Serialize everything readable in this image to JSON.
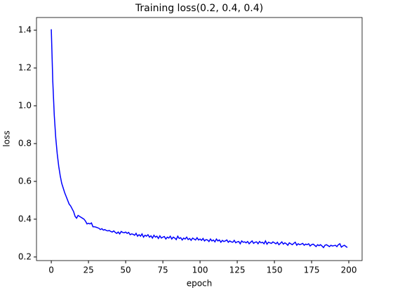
{
  "chart_data": {
    "type": "line",
    "title": "Training loss(0.2, 0.4, 0.4)",
    "xlabel": "epoch",
    "ylabel": "loss",
    "color": "#0000ff",
    "x": [
      0,
      1,
      2,
      3,
      4,
      5,
      6,
      7,
      8,
      9,
      10,
      11,
      12,
      13,
      14,
      15,
      16,
      17,
      18,
      19,
      20,
      21,
      22,
      23,
      24,
      25,
      26,
      27,
      28,
      29,
      30,
      31,
      32,
      33,
      34,
      35,
      36,
      37,
      38,
      39,
      40,
      41,
      42,
      43,
      44,
      45,
      46,
      47,
      48,
      49,
      50,
      51,
      52,
      53,
      54,
      55,
      56,
      57,
      58,
      59,
      60,
      61,
      62,
      63,
      64,
      65,
      66,
      67,
      68,
      69,
      70,
      71,
      72,
      73,
      74,
      75,
      76,
      77,
      78,
      79,
      80,
      81,
      82,
      83,
      84,
      85,
      86,
      87,
      88,
      89,
      90,
      91,
      92,
      93,
      94,
      95,
      96,
      97,
      98,
      99,
      100,
      101,
      102,
      103,
      104,
      105,
      106,
      107,
      108,
      109,
      110,
      111,
      112,
      113,
      114,
      115,
      116,
      117,
      118,
      119,
      120,
      121,
      122,
      123,
      124,
      125,
      126,
      127,
      128,
      129,
      130,
      131,
      132,
      133,
      134,
      135,
      136,
      137,
      138,
      139,
      140,
      141,
      142,
      143,
      144,
      145,
      146,
      147,
      148,
      149,
      150,
      151,
      152,
      153,
      154,
      155,
      156,
      157,
      158,
      159,
      160,
      161,
      162,
      163,
      164,
      165,
      166,
      167,
      168,
      169,
      170,
      171,
      172,
      173,
      174,
      175,
      176,
      177,
      178,
      179,
      180,
      181,
      182,
      183,
      184,
      185,
      186,
      187,
      188,
      189,
      190,
      191,
      192,
      193,
      194,
      195,
      196,
      197,
      198,
      199
    ],
    "values": [
      1.405,
      1.13,
      0.95,
      0.83,
      0.745,
      0.68,
      0.63,
      0.59,
      0.565,
      0.54,
      0.52,
      0.5,
      0.48,
      0.47,
      0.455,
      0.44,
      0.415,
      0.405,
      0.42,
      0.415,
      0.41,
      0.405,
      0.4,
      0.39,
      0.375,
      0.378,
      0.375,
      0.38,
      0.36,
      0.36,
      0.358,
      0.355,
      0.352,
      0.345,
      0.35,
      0.342,
      0.345,
      0.34,
      0.338,
      0.34,
      0.335,
      0.332,
      0.338,
      0.33,
      0.325,
      0.332,
      0.322,
      0.335,
      0.33,
      0.328,
      0.332,
      0.325,
      0.33,
      0.318,
      0.322,
      0.32,
      0.315,
      0.325,
      0.31,
      0.318,
      0.31,
      0.322,
      0.305,
      0.315,
      0.31,
      0.318,
      0.305,
      0.312,
      0.3,
      0.315,
      0.305,
      0.31,
      0.298,
      0.312,
      0.3,
      0.305,
      0.308,
      0.295,
      0.305,
      0.3,
      0.31,
      0.295,
      0.305,
      0.3,
      0.292,
      0.31,
      0.298,
      0.302,
      0.29,
      0.3,
      0.295,
      0.305,
      0.292,
      0.298,
      0.288,
      0.3,
      0.295,
      0.29,
      0.302,
      0.29,
      0.295,
      0.288,
      0.298,
      0.285,
      0.292,
      0.29,
      0.282,
      0.295,
      0.285,
      0.29,
      0.28,
      0.295,
      0.285,
      0.29,
      0.278,
      0.288,
      0.282,
      0.285,
      0.29,
      0.278,
      0.285,
      0.28,
      0.278,
      0.288,
      0.275,
      0.28,
      0.282,
      0.27,
      0.285,
      0.278,
      0.28,
      0.275,
      0.282,
      0.27,
      0.278,
      0.285,
      0.272,
      0.278,
      0.28,
      0.27,
      0.282,
      0.275,
      0.278,
      0.27,
      0.285,
      0.268,
      0.278,
      0.275,
      0.272,
      0.28,
      0.275,
      0.27,
      0.278,
      0.265,
      0.272,
      0.28,
      0.268,
      0.275,
      0.27,
      0.262,
      0.275,
      0.27,
      0.265,
      0.272,
      0.278,
      0.262,
      0.27,
      0.265,
      0.268,
      0.272,
      0.262,
      0.268,
      0.265,
      0.27,
      0.258,
      0.265,
      0.268,
      0.262,
      0.255,
      0.265,
      0.26,
      0.265,
      0.258,
      0.25,
      0.262,
      0.265,
      0.26,
      0.255,
      0.262,
      0.258,
      0.26,
      0.262,
      0.255,
      0.265,
      0.27,
      0.252,
      0.258,
      0.262,
      0.256,
      0.25
    ],
    "xlim": [
      -9.95,
      208.95
    ],
    "xticks": [
      0,
      25,
      50,
      75,
      100,
      125,
      150,
      175,
      200
    ],
    "ylim": [
      0.181,
      1.467
    ],
    "yticks": [
      0.2,
      0.4,
      0.6,
      0.8,
      {
        "value": 1,
        "label": "1.0"
      },
      1.2,
      1.4
    ]
  }
}
